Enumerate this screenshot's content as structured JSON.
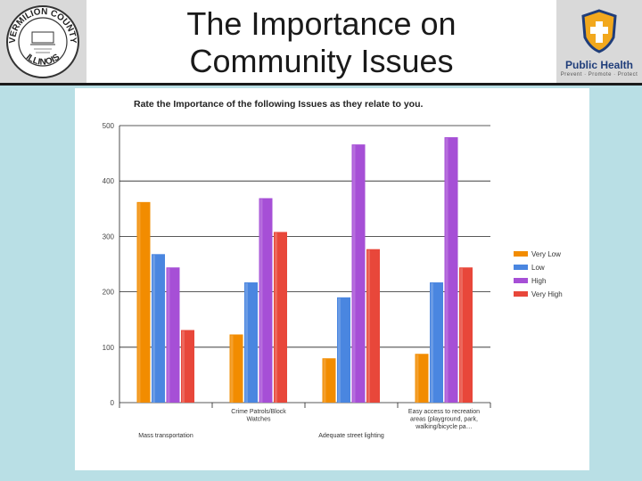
{
  "header": {
    "title_line1": "The Importance on",
    "title_line2": "Community Issues",
    "left_logo": {
      "top_text": "VERMILION COUNTY",
      "bottom_text": "ILLINOIS",
      "icon": "county-seal-icon"
    },
    "right_logo": {
      "text": "Public Health",
      "subtext": "Prevent · Promote · Protect",
      "icon": "public-health-shield-icon"
    }
  },
  "colors": {
    "very_low": "#f28c00",
    "low": "#4a86e0",
    "high": "#a64fd6",
    "very_high": "#e8473a",
    "slide_bg": "#b9dfe5"
  },
  "chart_data": {
    "type": "bar",
    "title": "Rate the Importance of the following Issues as they relate to you.",
    "categories": [
      "Mass transportation",
      "Crime Patrols/Block Watches",
      "Adequate street lighting",
      "Easy access to recreation areas (playground, park, walking/bicycle pa…"
    ],
    "category_label_lines": [
      [
        "Mass transportation"
      ],
      [
        "Crime Patrols/Block",
        "Watches"
      ],
      [
        "Adequate street lighting"
      ],
      [
        "Easy access to recreation",
        "areas (playground, park,",
        "walking/bicycle pa…"
      ]
    ],
    "category_label_row": [
      1,
      0,
      1,
      0
    ],
    "series": [
      {
        "name": "Very Low",
        "values": [
          362,
          123,
          80,
          88
        ]
      },
      {
        "name": "Low",
        "values": [
          268,
          217,
          190,
          217
        ]
      },
      {
        "name": "High",
        "values": [
          244,
          369,
          466,
          479
        ]
      },
      {
        "name": "Very High",
        "values": [
          131,
          308,
          277,
          244
        ]
      }
    ],
    "yticks": [
      "0",
      "100",
      "200",
      "300",
      "400",
      "500"
    ],
    "ylim": [
      0,
      500
    ],
    "xlabel": "",
    "ylabel": "",
    "grid": true,
    "legend": "right"
  }
}
